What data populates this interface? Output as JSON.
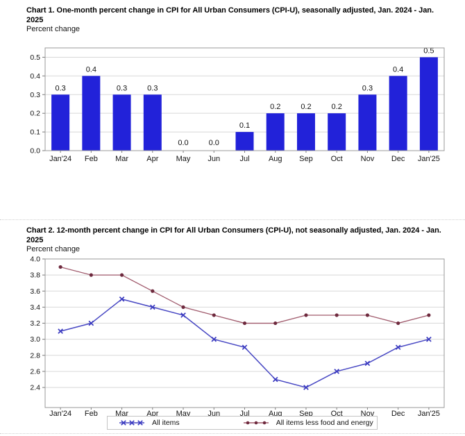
{
  "page": {
    "background": "#ffffff"
  },
  "chart_data": [
    {
      "type": "bar",
      "title": "Chart 1. One-month percent change in CPI for All Urban Consumers (CPI-U), seasonally adjusted, Jan. 2024 - Jan. 2025",
      "ylabel": "Percent change",
      "categories": [
        "Jan'24",
        "Feb",
        "Mar",
        "Apr",
        "May",
        "Jun",
        "Jul",
        "Aug",
        "Sep",
        "Oct",
        "Nov",
        "Dec",
        "Jan'25"
      ],
      "values": [
        0.3,
        0.4,
        0.3,
        0.3,
        0.0,
        0.0,
        0.1,
        0.2,
        0.2,
        0.2,
        0.3,
        0.4,
        0.5
      ],
      "bar_color": "#2222d9",
      "ylim": [
        0,
        0.55
      ],
      "yticks": [
        0.0,
        0.1,
        0.2,
        0.3,
        0.4,
        0.5
      ],
      "grid": true,
      "data_labels": true,
      "legend_position": "none"
    },
    {
      "type": "line",
      "title": "Chart 2. 12-month percent change in CPI for All Urban Consumers (CPI-U), not seasonally adjusted, Jan. 2024 - Jan. 2025",
      "ylabel": "Percent change",
      "categories": [
        "Jan'24",
        "Feb",
        "Mar",
        "Apr",
        "May",
        "Jun",
        "Jul",
        "Aug",
        "Sep",
        "Oct",
        "Nov",
        "Dec",
        "Jan'25"
      ],
      "series": [
        {
          "name": "All items",
          "marker": "x",
          "line_color": "#4747c3",
          "marker_color": "#3a3ac0",
          "values": [
            3.1,
            3.2,
            3.5,
            3.4,
            3.3,
            3.0,
            2.9,
            2.5,
            2.4,
            2.6,
            2.7,
            2.9,
            3.0
          ]
        },
        {
          "name": "All items less food and energy",
          "marker": "dot",
          "line_color": "#a05a6c",
          "marker_color": "#6e2a3e",
          "values": [
            3.9,
            3.8,
            3.8,
            3.6,
            3.4,
            3.3,
            3.2,
            3.2,
            3.3,
            3.3,
            3.3,
            3.2,
            3.3
          ]
        }
      ],
      "ylim": [
        2.15,
        4.0
      ],
      "yticks": [
        2.4,
        2.6,
        2.8,
        3.0,
        3.2,
        3.4,
        3.6,
        3.8,
        4.0
      ],
      "grid": true,
      "legend_position": "bottom"
    }
  ]
}
